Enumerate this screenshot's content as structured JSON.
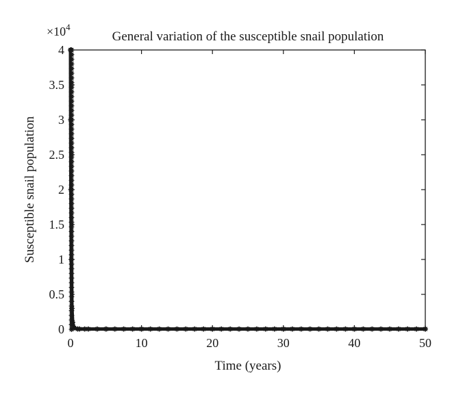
{
  "chart_data": {
    "type": "line",
    "title": "General variation of the susceptible snail population",
    "xlabel": "Time (years)",
    "ylabel": "Susceptible snail population",
    "y_multiplier_base": "×10",
    "y_multiplier_exponent": "4",
    "xlim": [
      0,
      50
    ],
    "ylim": [
      0,
      40000
    ],
    "x_ticks": [
      0,
      10,
      20,
      30,
      40,
      50
    ],
    "x_tick_labels": [
      "0",
      "10",
      "20",
      "30",
      "40",
      "50"
    ],
    "y_ticks": [
      0,
      5000,
      10000,
      15000,
      20000,
      25000,
      30000,
      35000,
      40000
    ],
    "y_tick_labels": [
      "0",
      "0.5",
      "1",
      "1.5",
      "2",
      "2.5",
      "3",
      "3.5",
      "4"
    ],
    "grid": false,
    "marker": "asterisk",
    "series": [
      {
        "color": "#1a1a1a",
        "x": [
          0,
          0.02,
          0.05,
          0.1,
          0.2,
          0.3,
          0.5,
          1,
          2,
          5,
          10,
          20,
          30,
          40,
          50
        ],
        "values": [
          40000,
          30000,
          20000,
          10000,
          3000,
          1000,
          200,
          50,
          40,
          40,
          40,
          40,
          40,
          40,
          40
        ]
      }
    ]
  }
}
